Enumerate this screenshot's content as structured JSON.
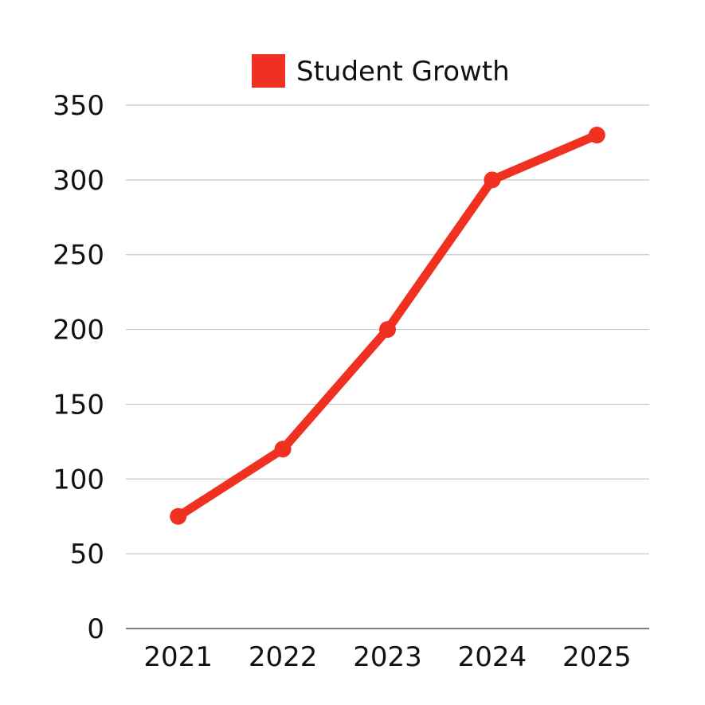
{
  "chart_data": {
    "type": "line",
    "title": "",
    "xlabel": "",
    "ylabel": "",
    "categories": [
      "2021",
      "2022",
      "2023",
      "2024",
      "2025"
    ],
    "series": [
      {
        "name": "Student Growth",
        "color": "#f03020",
        "values": [
          75,
          120,
          200,
          300,
          330
        ]
      }
    ],
    "ylim": [
      0,
      350
    ],
    "yticks": [
      0,
      50,
      100,
      150,
      200,
      250,
      300,
      350
    ],
    "grid": true,
    "legend_position": "top"
  },
  "legend": {
    "label": "Student Growth",
    "color": "#f03020"
  }
}
